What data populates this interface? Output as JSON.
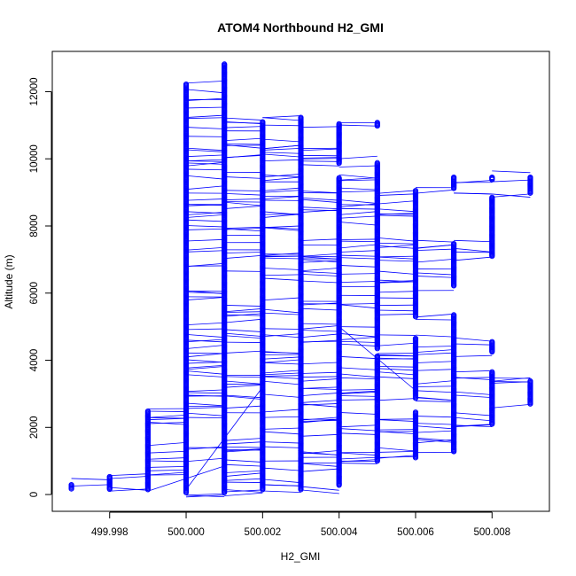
{
  "chart_data": {
    "type": "scatter",
    "title": "ATOM4 Northbound H2_GMI",
    "xlabel": "H2_GMI",
    "ylabel": "Altitude (m)",
    "xlim": [
      499.9965,
      500.0095
    ],
    "ylim": [
      -500,
      13200
    ],
    "x_ticks": [
      499.998,
      500.0,
      500.002,
      500.004,
      500.006,
      500.008
    ],
    "x_tick_labels": [
      "499.998",
      "500.000",
      "500.002",
      "500.004",
      "500.006",
      "500.008"
    ],
    "y_ticks": [
      0,
      2000,
      4000,
      6000,
      8000,
      10000,
      12000
    ],
    "y_tick_labels": [
      "0",
      "2000",
      "4000",
      "6000",
      "8000",
      "10000",
      "12000"
    ],
    "marker": "open-circle",
    "connected_lines": true,
    "color": "#0000ff",
    "columns": [
      {
        "x": 499.997,
        "segments": [
          [
            170,
            290
          ]
        ]
      },
      {
        "x": 499.998,
        "segments": [
          [
            160,
            530
          ]
        ]
      },
      {
        "x": 499.999,
        "segments": [
          [
            150,
            2480
          ]
        ]
      },
      {
        "x": 500.0,
        "segments": [
          [
            60,
            12220
          ]
        ]
      },
      {
        "x": 500.001,
        "segments": [
          [
            60,
            12820
          ]
        ]
      },
      {
        "x": 500.002,
        "segments": [
          [
            150,
            11100
          ]
        ]
      },
      {
        "x": 500.003,
        "segments": [
          [
            150,
            11230
          ]
        ]
      },
      {
        "x": 500.004,
        "segments": [
          [
            280,
            9430
          ],
          [
            9870,
            11040
          ]
        ]
      },
      {
        "x": 500.005,
        "segments": [
          [
            1000,
            4120
          ],
          [
            4350,
            9880
          ],
          [
            10980,
            11080
          ]
        ]
      },
      {
        "x": 500.006,
        "segments": [
          [
            1100,
            2450
          ],
          [
            2870,
            4650
          ],
          [
            5300,
            9050
          ]
        ]
      },
      {
        "x": 500.007,
        "segments": [
          [
            1280,
            5350
          ],
          [
            6220,
            7470
          ],
          [
            9120,
            9450
          ]
        ]
      },
      {
        "x": 500.008,
        "segments": [
          [
            2100,
            3650
          ],
          [
            4250,
            4550
          ],
          [
            7100,
            8850
          ],
          [
            9380,
            9450
          ]
        ]
      },
      {
        "x": 500.009,
        "segments": [
          [
            2700,
            3380
          ],
          [
            8980,
            9450
          ]
        ]
      }
    ]
  }
}
